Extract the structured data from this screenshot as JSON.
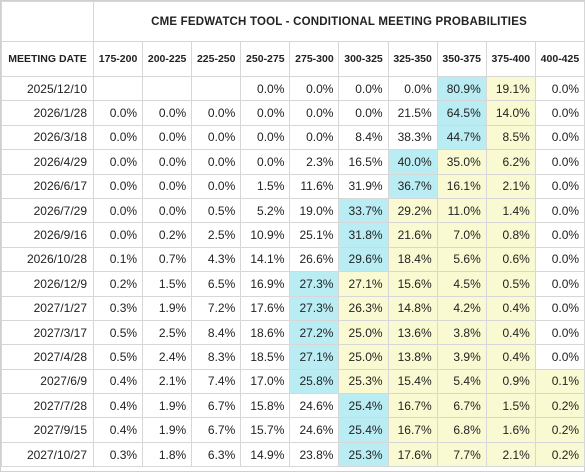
{
  "title": "CME FEDWATCH TOOL - CONDITIONAL MEETING PROBABILITIES",
  "meeting_date_header": "MEETING DATE",
  "columns": [
    "175-200",
    "200-225",
    "225-250",
    "250-275",
    "275-300",
    "300-325",
    "325-350",
    "350-375",
    "375-400",
    "400-425"
  ],
  "rows": [
    {
      "date": "2025/12/10",
      "values": [
        "",
        "",
        "",
        "0.0%",
        "0.0%",
        "0.0%",
        "0.0%",
        "80.9%",
        "19.1%",
        "0.0%"
      ],
      "styles": [
        "",
        "",
        "",
        "",
        "",
        "",
        "",
        "blue",
        "yellow",
        ""
      ]
    },
    {
      "date": "2026/1/28",
      "values": [
        "0.0%",
        "0.0%",
        "0.0%",
        "0.0%",
        "0.0%",
        "0.0%",
        "21.5%",
        "64.5%",
        "14.0%",
        "0.0%"
      ],
      "styles": [
        "",
        "",
        "",
        "",
        "",
        "",
        "",
        "blue",
        "yellow",
        ""
      ]
    },
    {
      "date": "2026/3/18",
      "values": [
        "0.0%",
        "0.0%",
        "0.0%",
        "0.0%",
        "0.0%",
        "8.4%",
        "38.3%",
        "44.7%",
        "8.5%",
        "0.0%"
      ],
      "styles": [
        "",
        "",
        "",
        "",
        "",
        "",
        "",
        "blue",
        "yellow",
        ""
      ]
    },
    {
      "date": "2026/4/29",
      "values": [
        "0.0%",
        "0.0%",
        "0.0%",
        "0.0%",
        "2.3%",
        "16.5%",
        "40.0%",
        "35.0%",
        "6.2%",
        "0.0%"
      ],
      "styles": [
        "",
        "",
        "",
        "",
        "",
        "",
        "blue",
        "yellow",
        "yellow",
        ""
      ]
    },
    {
      "date": "2026/6/17",
      "values": [
        "0.0%",
        "0.0%",
        "0.0%",
        "1.5%",
        "11.6%",
        "31.9%",
        "36.7%",
        "16.1%",
        "2.1%",
        "0.0%"
      ],
      "styles": [
        "",
        "",
        "",
        "",
        "",
        "",
        "blue",
        "yellow",
        "yellow",
        ""
      ]
    },
    {
      "date": "2026/7/29",
      "values": [
        "0.0%",
        "0.0%",
        "0.5%",
        "5.2%",
        "19.0%",
        "33.7%",
        "29.2%",
        "11.0%",
        "1.4%",
        "0.0%"
      ],
      "styles": [
        "",
        "",
        "",
        "",
        "",
        "blue",
        "yellow",
        "yellow",
        "yellow",
        ""
      ]
    },
    {
      "date": "2026/9/16",
      "values": [
        "0.0%",
        "0.2%",
        "2.5%",
        "10.9%",
        "25.1%",
        "31.8%",
        "21.6%",
        "7.0%",
        "0.8%",
        "0.0%"
      ],
      "styles": [
        "",
        "",
        "",
        "",
        "",
        "blue",
        "yellow",
        "yellow",
        "yellow",
        ""
      ]
    },
    {
      "date": "2026/10/28",
      "values": [
        "0.1%",
        "0.7%",
        "4.3%",
        "14.1%",
        "26.6%",
        "29.6%",
        "18.4%",
        "5.6%",
        "0.6%",
        "0.0%"
      ],
      "styles": [
        "",
        "",
        "",
        "",
        "",
        "blue",
        "yellow",
        "yellow",
        "yellow",
        ""
      ]
    },
    {
      "date": "2026/12/9",
      "values": [
        "0.2%",
        "1.5%",
        "6.5%",
        "16.9%",
        "27.3%",
        "27.1%",
        "15.6%",
        "4.5%",
        "0.5%",
        "0.0%"
      ],
      "styles": [
        "",
        "",
        "",
        "",
        "blue",
        "yellow",
        "yellow",
        "yellow",
        "yellow",
        ""
      ]
    },
    {
      "date": "2027/1/27",
      "values": [
        "0.3%",
        "1.9%",
        "7.2%",
        "17.6%",
        "27.3%",
        "26.3%",
        "14.8%",
        "4.2%",
        "0.4%",
        "0.0%"
      ],
      "styles": [
        "",
        "",
        "",
        "",
        "blue",
        "yellow",
        "yellow",
        "yellow",
        "yellow",
        ""
      ]
    },
    {
      "date": "2027/3/17",
      "values": [
        "0.5%",
        "2.5%",
        "8.4%",
        "18.6%",
        "27.2%",
        "25.0%",
        "13.6%",
        "3.8%",
        "0.4%",
        "0.0%"
      ],
      "styles": [
        "",
        "",
        "",
        "",
        "blue",
        "yellow",
        "yellow",
        "yellow",
        "yellow",
        ""
      ]
    },
    {
      "date": "2027/4/28",
      "values": [
        "0.5%",
        "2.4%",
        "8.3%",
        "18.5%",
        "27.1%",
        "25.0%",
        "13.8%",
        "3.9%",
        "0.4%",
        "0.0%"
      ],
      "styles": [
        "",
        "",
        "",
        "",
        "blue",
        "yellow",
        "yellow",
        "yellow",
        "yellow",
        ""
      ]
    },
    {
      "date": "2027/6/9",
      "values": [
        "0.4%",
        "2.1%",
        "7.4%",
        "17.0%",
        "25.8%",
        "25.3%",
        "15.4%",
        "5.4%",
        "0.9%",
        "0.1%"
      ],
      "styles": [
        "",
        "",
        "",
        "",
        "blue",
        "yellow",
        "yellow",
        "yellow",
        "yellow",
        "yellow"
      ]
    },
    {
      "date": "2027/7/28",
      "values": [
        "0.4%",
        "1.9%",
        "6.7%",
        "15.8%",
        "24.6%",
        "25.4%",
        "16.7%",
        "6.7%",
        "1.5%",
        "0.2%"
      ],
      "styles": [
        "",
        "",
        "",
        "",
        "",
        "blue",
        "yellow",
        "yellow",
        "yellow",
        "yellow"
      ]
    },
    {
      "date": "2027/9/15",
      "values": [
        "0.4%",
        "1.9%",
        "6.7%",
        "15.7%",
        "24.6%",
        "25.4%",
        "16.7%",
        "6.8%",
        "1.6%",
        "0.2%"
      ],
      "styles": [
        "",
        "",
        "",
        "",
        "",
        "blue",
        "yellow",
        "yellow",
        "yellow",
        "yellow"
      ]
    },
    {
      "date": "2027/10/27",
      "values": [
        "0.3%",
        "1.8%",
        "6.3%",
        "14.9%",
        "23.8%",
        "25.3%",
        "17.6%",
        "7.7%",
        "2.1%",
        "0.2%"
      ],
      "styles": [
        "",
        "",
        "",
        "",
        "",
        "blue",
        "yellow",
        "yellow",
        "yellow",
        "yellow"
      ]
    }
  ]
}
